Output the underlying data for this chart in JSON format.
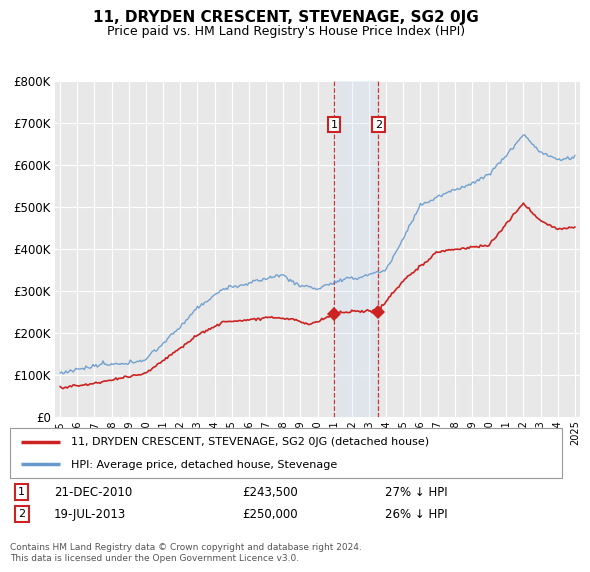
{
  "title": "11, DRYDEN CRESCENT, STEVENAGE, SG2 0JG",
  "subtitle": "Price paid vs. HM Land Registry's House Price Index (HPI)",
  "background_color": "#ffffff",
  "plot_bg_color": "#e8e8e8",
  "grid_color": "#ffffff",
  "hpi_color": "#6699cc",
  "price_color": "#cc2222",
  "annotation1": {
    "label": "1",
    "date": "21-DEC-2010",
    "price": 243500,
    "note": "27% ↓ HPI",
    "year": 2010.97
  },
  "annotation2": {
    "label": "2",
    "date": "19-JUL-2013",
    "price": 250000,
    "note": "26% ↓ HPI",
    "year": 2013.54
  },
  "legend_line1": "11, DRYDEN CRESCENT, STEVENAGE, SG2 0JG (detached house)",
  "legend_line2": "HPI: Average price, detached house, Stevenage",
  "footer": "Contains HM Land Registry data © Crown copyright and database right 2024.\nThis data is licensed under the Open Government Licence v3.0.",
  "ylim": [
    0,
    800000
  ],
  "yticks": [
    0,
    100000,
    200000,
    300000,
    400000,
    500000,
    600000,
    700000,
    800000
  ],
  "ytick_labels": [
    "£0",
    "£100K",
    "£200K",
    "£300K",
    "£400K",
    "£500K",
    "£600K",
    "£700K",
    "£800K"
  ],
  "xmin": 1995,
  "xmax": 2025
}
